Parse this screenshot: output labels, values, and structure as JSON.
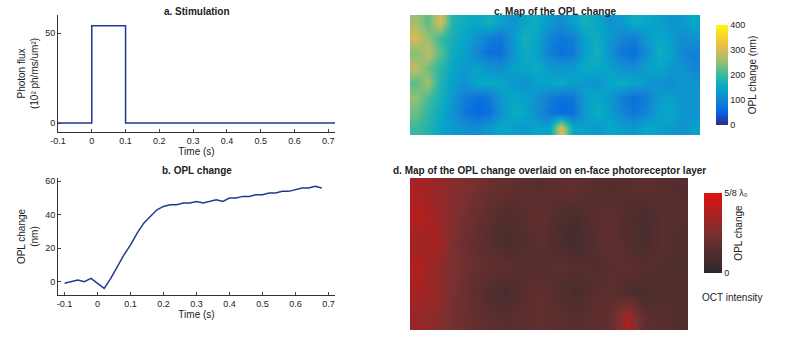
{
  "chart_data": [
    {
      "type": "line",
      "title": "a. Stimulation",
      "x": [
        -0.1,
        0,
        0,
        0.1,
        0.1,
        0.72
      ],
      "values": [
        0,
        0,
        54,
        54,
        0,
        0
      ],
      "x_label": "Time (s)",
      "y_label": "Photon flux (10² ph/ms/um²)",
      "xlim": [
        -0.1,
        0.72
      ],
      "ylim": [
        -5,
        60
      ],
      "xticks": [
        -0.1,
        0,
        0.1,
        0.2,
        0.3,
        0.4,
        0.5,
        0.6,
        0.7
      ],
      "yticks": [
        0,
        50
      ],
      "color": "#1f3a93"
    },
    {
      "type": "line",
      "title": "b. OPL change",
      "x": [
        -0.1,
        -0.08,
        -0.06,
        -0.04,
        -0.02,
        0,
        0.02,
        0.04,
        0.06,
        0.08,
        0.1,
        0.12,
        0.14,
        0.16,
        0.18,
        0.2,
        0.22,
        0.24,
        0.26,
        0.28,
        0.3,
        0.32,
        0.34,
        0.36,
        0.38,
        0.4,
        0.42,
        0.44,
        0.46,
        0.48,
        0.5,
        0.52,
        0.54,
        0.56,
        0.58,
        0.6,
        0.62,
        0.64,
        0.66,
        0.68
      ],
      "values": [
        -1,
        0,
        1,
        0,
        2,
        -1,
        -4,
        2,
        9,
        16,
        22,
        29,
        35,
        39,
        43,
        45,
        46,
        46,
        47,
        47,
        48,
        47,
        48,
        49,
        48,
        50,
        50,
        51,
        51,
        52,
        52,
        53,
        53,
        54,
        54,
        55,
        56,
        56,
        57,
        56
      ],
      "x_label": "Time (s)",
      "y_label": "OPL change (nm)",
      "xlim": [
        -0.12,
        0.72
      ],
      "ylim": [
        -8,
        62
      ],
      "xticks": [
        -0.1,
        0,
        0.1,
        0.2,
        0.3,
        0.4,
        0.5,
        0.6,
        0.7
      ],
      "yticks": [
        0,
        20,
        40,
        60
      ],
      "color": "#1f3a93"
    },
    {
      "type": "heatmap",
      "title": "c. Map of the OPL change",
      "tick_labels": false,
      "cells": [
        [
          260,
          220,
          300,
          180,
          160,
          150,
          170,
          140,
          120,
          150,
          160,
          130,
          110,
          140,
          170,
          150,
          120,
          130,
          160,
          150,
          140,
          120,
          130,
          150
        ],
        [
          300,
          250,
          200,
          170,
          150,
          120,
          90,
          80,
          130,
          170,
          150,
          100,
          80,
          90,
          150,
          160,
          130,
          100,
          90,
          130,
          150,
          140,
          110,
          120
        ],
        [
          240,
          280,
          220,
          160,
          140,
          100,
          70,
          70,
          120,
          160,
          140,
          90,
          70,
          80,
          140,
          170,
          120,
          80,
          70,
          110,
          160,
          150,
          100,
          90
        ],
        [
          280,
          230,
          190,
          150,
          130,
          140,
          120,
          110,
          140,
          150,
          160,
          130,
          120,
          130,
          160,
          150,
          140,
          120,
          110,
          140,
          150,
          130,
          120,
          100
        ],
        [
          220,
          260,
          180,
          140,
          120,
          150,
          160,
          150,
          130,
          120,
          140,
          150,
          160,
          140,
          130,
          120,
          150,
          160,
          150,
          130,
          120,
          110,
          130,
          120
        ],
        [
          250,
          210,
          170,
          130,
          90,
          70,
          80,
          130,
          150,
          140,
          120,
          90,
          70,
          80,
          140,
          150,
          130,
          90,
          70,
          90,
          130,
          140,
          120,
          130
        ],
        [
          230,
          190,
          160,
          120,
          80,
          60,
          70,
          120,
          160,
          150,
          110,
          80,
          60,
          70,
          130,
          160,
          140,
          100,
          80,
          100,
          140,
          150,
          130,
          120
        ],
        [
          200,
          180,
          150,
          130,
          120,
          110,
          130,
          150,
          140,
          130,
          150,
          140,
          300,
          150,
          140,
          130,
          150,
          140,
          130,
          150,
          140,
          130,
          120,
          140
        ]
      ],
      "colorbar": {
        "label": "OPL change (nm)",
        "range": [
          0,
          400
        ],
        "ticks": [
          0,
          100,
          200,
          300,
          400
        ]
      }
    },
    {
      "type": "heatmap",
      "title": "d. Map of the OPL change overlaid on en-face photoreceptor layer",
      "tick_labels": false,
      "color": "#e01010",
      "cells": [
        [
          0.45,
          0.4,
          0.35,
          0.3,
          0.25,
          0.22,
          0.2,
          0.18,
          0.2,
          0.22,
          0.18,
          0.16,
          0.18,
          0.2,
          0.18,
          0.16
        ],
        [
          0.5,
          0.42,
          0.33,
          0.26,
          0.2,
          0.15,
          0.18,
          0.22,
          0.16,
          0.12,
          0.18,
          0.2,
          0.15,
          0.12,
          0.18,
          0.17
        ],
        [
          0.42,
          0.46,
          0.3,
          0.24,
          0.18,
          0.12,
          0.16,
          0.2,
          0.14,
          0.1,
          0.16,
          0.22,
          0.16,
          0.12,
          0.2,
          0.15
        ],
        [
          0.48,
          0.38,
          0.32,
          0.25,
          0.22,
          0.2,
          0.18,
          0.16,
          0.2,
          0.18,
          0.16,
          0.18,
          0.2,
          0.18,
          0.16,
          0.14
        ],
        [
          0.44,
          0.4,
          0.3,
          0.22,
          0.16,
          0.12,
          0.18,
          0.22,
          0.16,
          0.12,
          0.18,
          0.2,
          0.14,
          0.12,
          0.16,
          0.15
        ],
        [
          0.4,
          0.36,
          0.28,
          0.24,
          0.2,
          0.18,
          0.2,
          0.22,
          0.2,
          0.18,
          0.2,
          0.22,
          0.45,
          0.2,
          0.18,
          0.16
        ]
      ],
      "colorbar": {
        "label": "OPL change",
        "range": [
          0,
          0.625
        ],
        "ticks": [
          0,
          {
            "value": 0.625,
            "label": "5/8 λ₀"
          }
        ]
      },
      "intensity_label": "OCT intensity"
    }
  ]
}
